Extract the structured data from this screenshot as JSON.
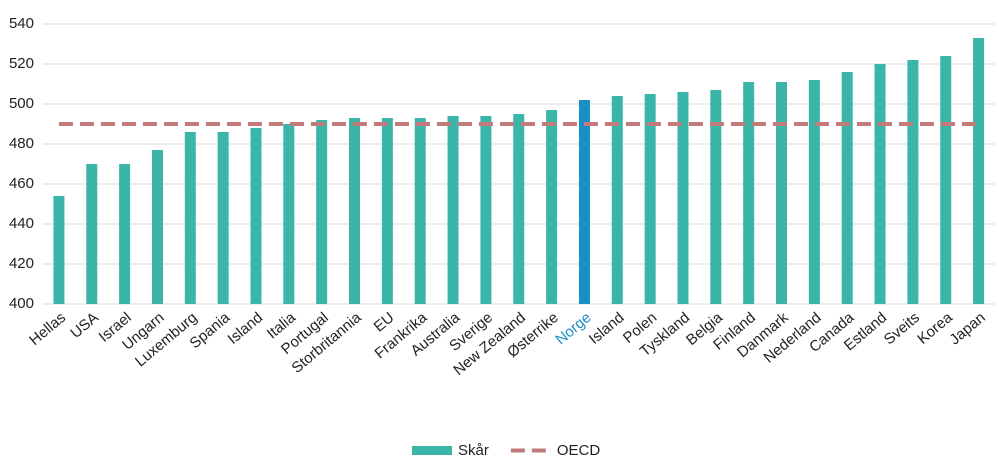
{
  "chart_data": {
    "type": "bar",
    "categories": [
      "Hellas",
      "USA",
      "Israel",
      "Ungarn",
      "Luxemburg",
      "Spania",
      "Island",
      "Italia",
      "Portugal",
      "Storbritannia",
      "EU",
      "Frankrika",
      "Australia",
      "Sverige",
      "New Zealand",
      "Østerrike",
      "Norge",
      "Island",
      "Polen",
      "Tyskland",
      "Belgia",
      "Finland",
      "Danmark",
      "Nederland",
      "Canada",
      "Estland",
      "Sveits",
      "Korea",
      "Japan"
    ],
    "series": [
      {
        "name": "Skår",
        "type": "bar",
        "color": "#3ab5a8",
        "colors": [
          "#3ab5a8",
          "#3ab5a8",
          "#3ab5a8",
          "#3ab5a8",
          "#3ab5a8",
          "#3ab5a8",
          "#3ab5a8",
          "#3ab5a8",
          "#3ab5a8",
          "#3ab5a8",
          "#3ab5a8",
          "#3ab5a8",
          "#3ab5a8",
          "#3ab5a8",
          "#3ab5a8",
          "#3ab5a8",
          "#1a8fc4",
          "#3ab5a8",
          "#3ab5a8",
          "#3ab5a8",
          "#3ab5a8",
          "#3ab5a8",
          "#3ab5a8",
          "#3ab5a8",
          "#3ab5a8",
          "#3ab5a8",
          "#3ab5a8",
          "#3ab5a8",
          "#3ab5a8"
        ],
        "values": [
          454,
          470,
          470,
          477,
          486,
          486,
          488,
          490,
          492,
          493,
          493,
          493,
          494,
          494,
          495,
          497,
          502,
          504,
          505,
          506,
          507,
          511,
          511,
          512,
          516,
          520,
          522,
          524,
          533
        ]
      },
      {
        "name": "OECD",
        "type": "line",
        "dashed": true,
        "color": "#c27a7a",
        "values": [
          490,
          490,
          490,
          490,
          490,
          490,
          490,
          490,
          490,
          490,
          490,
          490,
          490,
          490,
          490,
          490,
          490,
          490,
          490,
          490,
          490,
          490,
          490,
          490,
          490,
          490,
          490,
          490,
          490
        ]
      }
    ],
    "ylim": [
      400,
      540
    ],
    "yticks": [
      400,
      420,
      440,
      460,
      480,
      500,
      520,
      540
    ],
    "grid": true,
    "legend": "bottom"
  }
}
